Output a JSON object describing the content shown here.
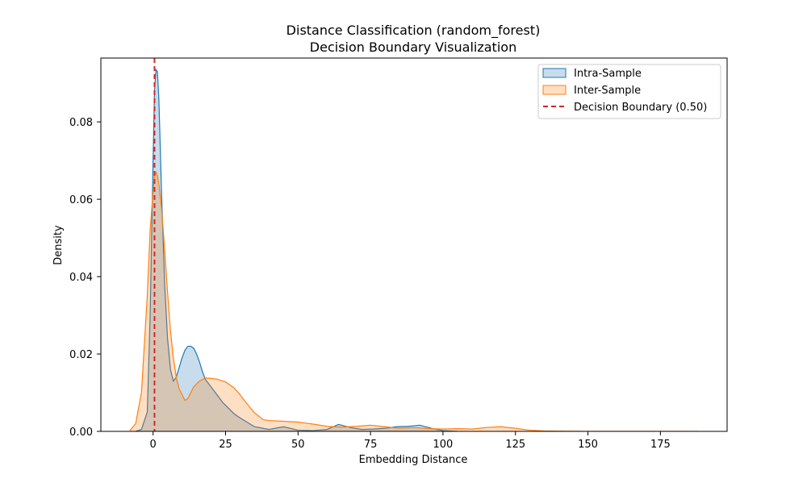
{
  "chart_data": {
    "type": "area",
    "title": "Distance Classification (random_forest)",
    "subtitle": "Decision Boundary Visualization",
    "xlabel": "Embedding Distance",
    "ylabel": "Density",
    "xlim": [
      -18,
      198
    ],
    "ylim": [
      0,
      0.0965
    ],
    "xticks": [
      0,
      25,
      50,
      75,
      100,
      125,
      150,
      175
    ],
    "yticks": [
      0.0,
      0.02,
      0.04,
      0.06,
      0.08
    ],
    "ytick_labels": [
      "0.00",
      "0.02",
      "0.04",
      "0.06",
      "0.08"
    ],
    "grid": false,
    "legend_position": "top-right",
    "series": [
      {
        "name": "Intra-Sample",
        "color": "#1f77b4",
        "x": [
          -6,
          -4,
          -2,
          -1,
          0,
          0.5,
          1,
          1.5,
          2,
          3,
          4,
          5,
          6,
          7,
          8,
          9,
          10,
          11,
          12,
          13,
          14,
          15,
          16,
          17,
          18,
          20,
          22,
          24,
          26,
          28,
          30,
          35,
          40,
          45,
          50,
          55,
          60,
          64,
          68,
          72,
          76,
          80,
          84,
          88,
          92,
          96,
          100,
          105
        ],
        "y": [
          0.0,
          0.0005,
          0.005,
          0.03,
          0.07,
          0.088,
          0.0935,
          0.093,
          0.086,
          0.06,
          0.038,
          0.024,
          0.016,
          0.013,
          0.014,
          0.0165,
          0.019,
          0.021,
          0.022,
          0.022,
          0.0215,
          0.02,
          0.018,
          0.0155,
          0.0135,
          0.0115,
          0.0095,
          0.0075,
          0.006,
          0.0045,
          0.0035,
          0.0012,
          0.0005,
          0.0012,
          0.0003,
          0.0002,
          0.0005,
          0.0018,
          0.001,
          0.0005,
          0.0006,
          0.0008,
          0.0012,
          0.0013,
          0.0016,
          0.0008,
          0.0002,
          0.0
        ]
      },
      {
        "name": "Inter-Sample",
        "color": "#ff7f0e",
        "x": [
          -8,
          -6,
          -4,
          -2,
          -1,
          0,
          0.5,
          1,
          1.5,
          2,
          3,
          4,
          5,
          6,
          7,
          8,
          9,
          10,
          11,
          12,
          13,
          14,
          16,
          18,
          20,
          22,
          25,
          28,
          30,
          32,
          35,
          38,
          40,
          45,
          50,
          55,
          60,
          65,
          70,
          75,
          80,
          85,
          90,
          95,
          100,
          105,
          110,
          115,
          120,
          125,
          130,
          135,
          140,
          150,
          160,
          170,
          180,
          188
        ],
        "y": [
          0.0002,
          0.002,
          0.01,
          0.035,
          0.052,
          0.062,
          0.066,
          0.067,
          0.066,
          0.064,
          0.057,
          0.047,
          0.036,
          0.026,
          0.019,
          0.014,
          0.011,
          0.0095,
          0.008,
          0.0085,
          0.01,
          0.0115,
          0.013,
          0.0138,
          0.0137,
          0.0135,
          0.0128,
          0.0112,
          0.0095,
          0.0075,
          0.0048,
          0.003,
          0.0028,
          0.0026,
          0.0024,
          0.0019,
          0.0013,
          0.0011,
          0.0013,
          0.0016,
          0.0012,
          0.0008,
          0.001,
          0.0007,
          0.0006,
          0.0007,
          0.0006,
          0.001,
          0.0012,
          0.0008,
          0.0003,
          0.0001,
          5e-05,
          0.0,
          0.0,
          0.0,
          0.0,
          0.0
        ]
      }
    ],
    "decision_boundary": {
      "label": "Decision Boundary (0.50)",
      "x": 0.5,
      "color": "#d62728"
    }
  }
}
